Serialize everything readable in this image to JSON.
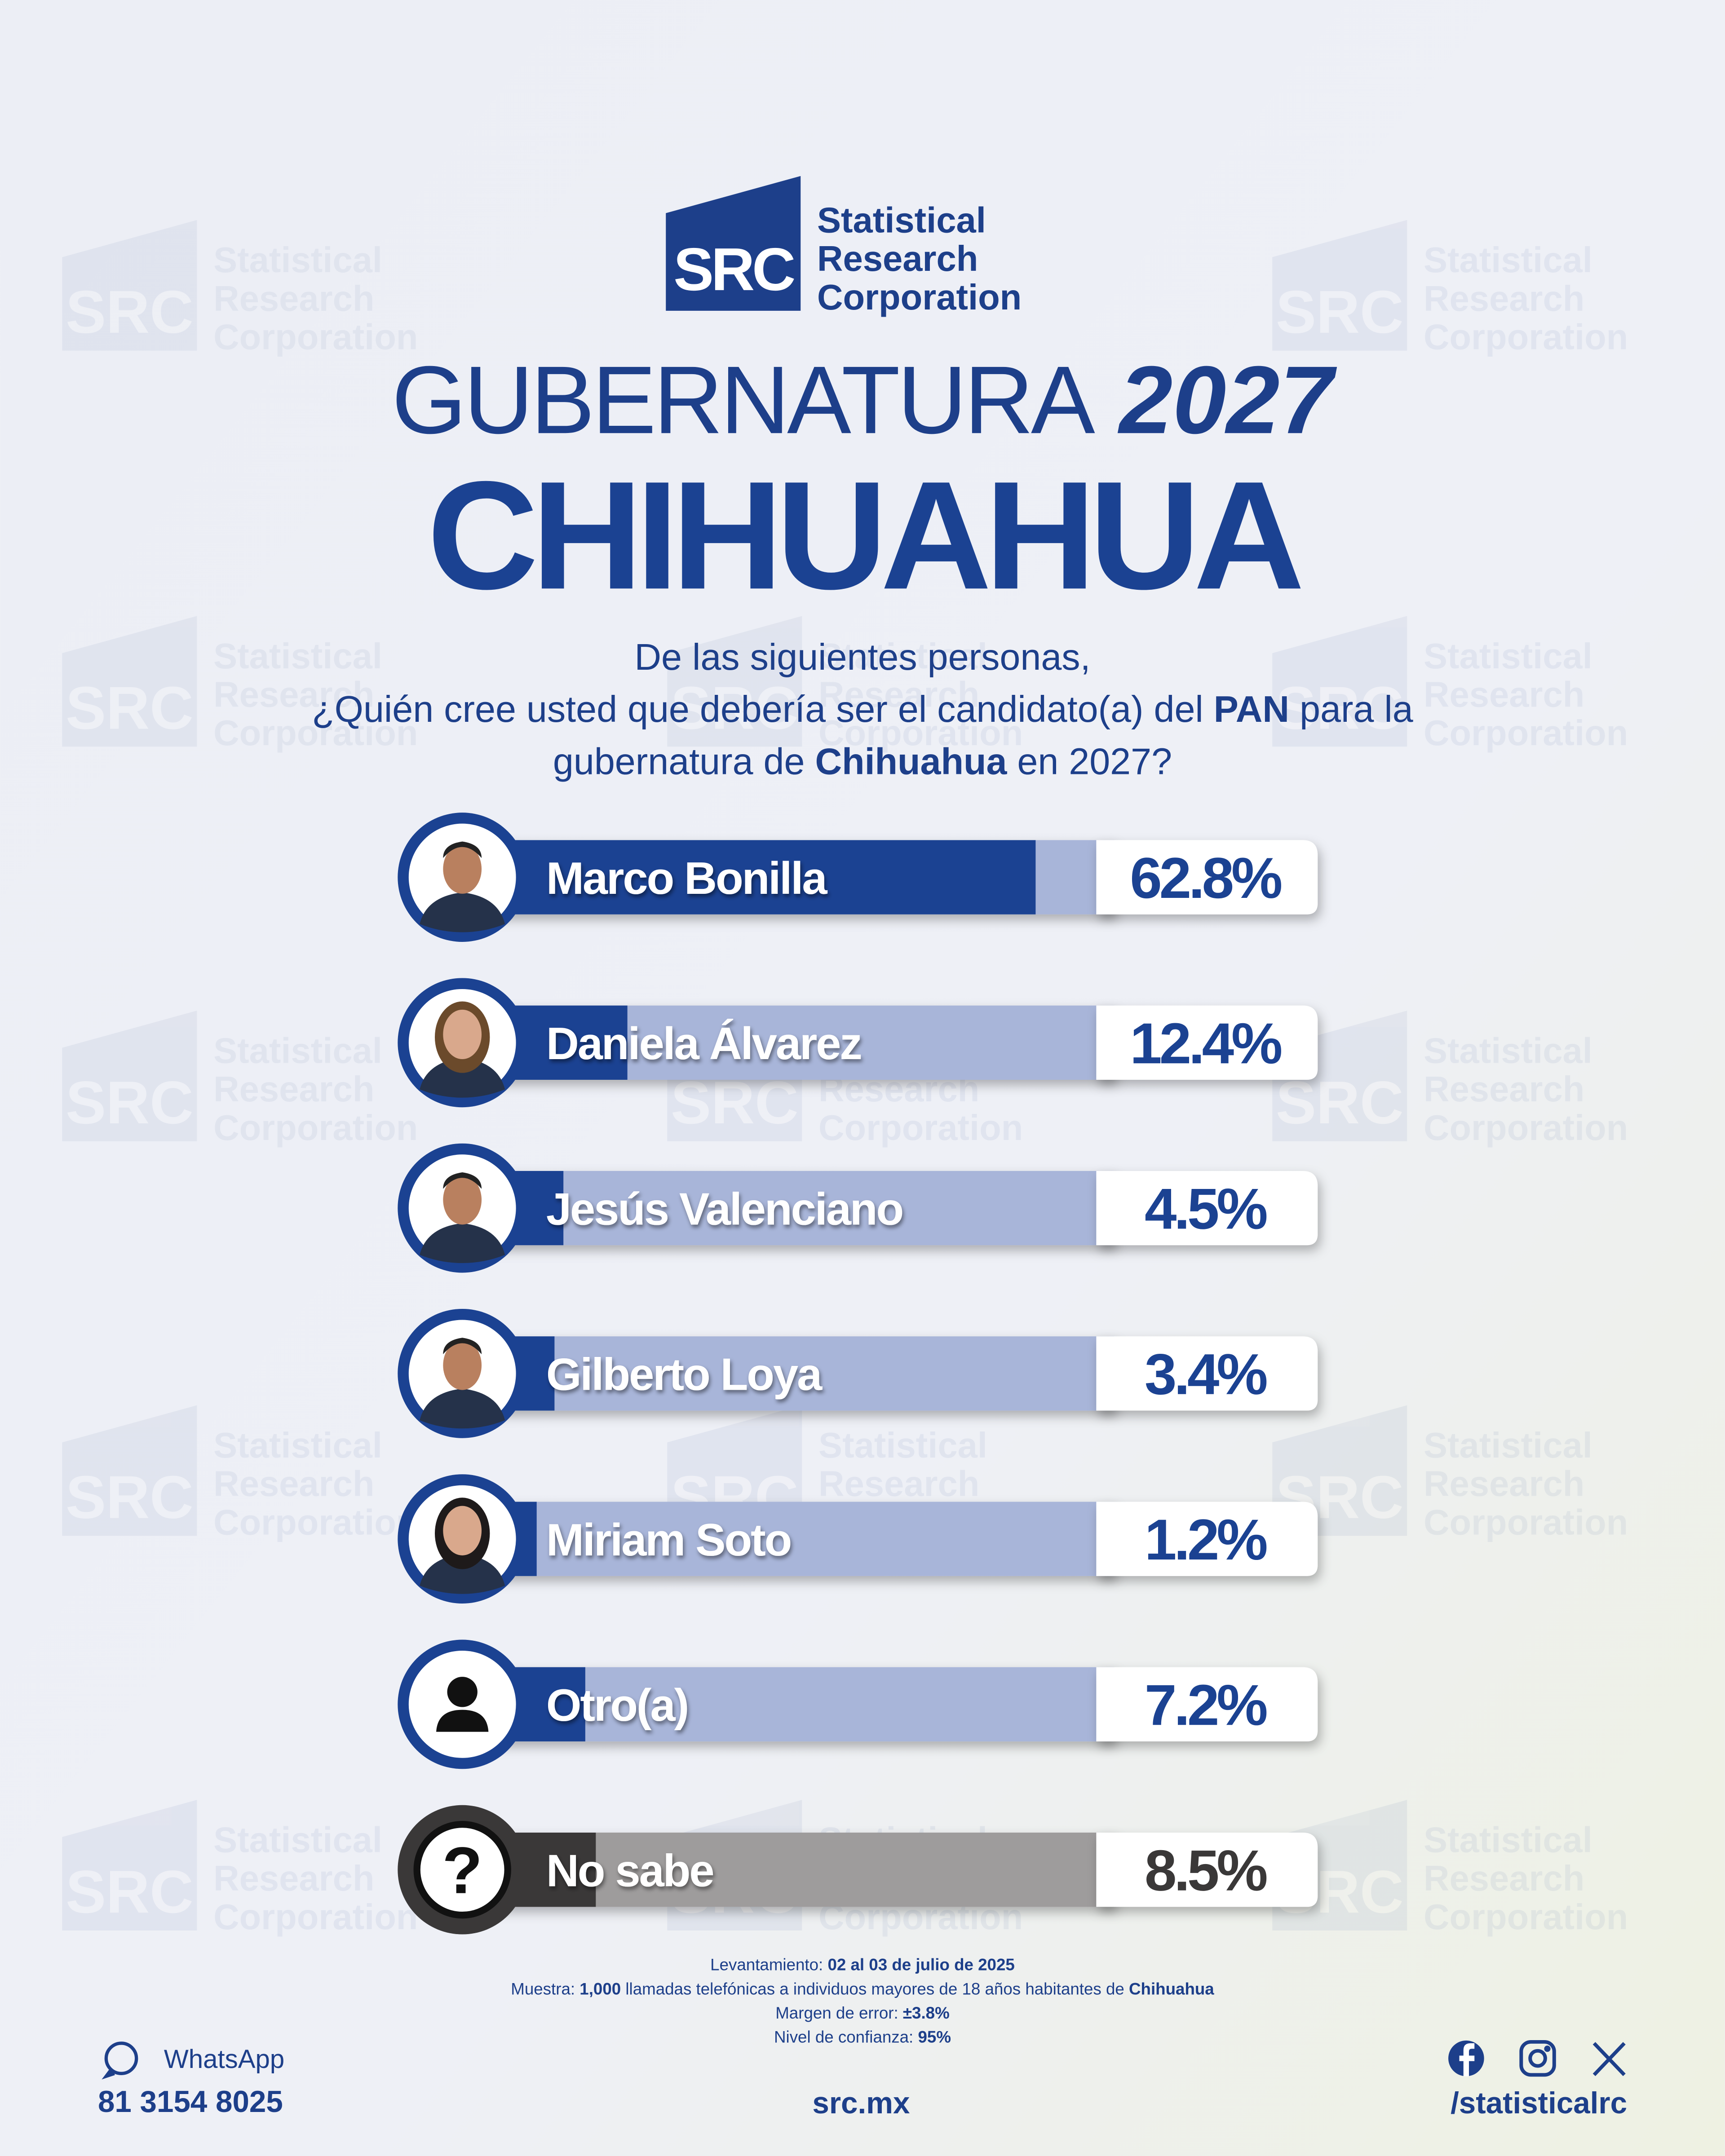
{
  "header": {
    "logo_mark": "SRC",
    "logo_lines": [
      "Statistical",
      "Research",
      "Corporation"
    ],
    "title_word": "GUBERNATURA",
    "title_year": "2027",
    "subtitle": "CHIHUAHUA"
  },
  "chart_data": {
    "type": "bar",
    "orientation": "horizontal",
    "question": [
      [
        "De las siguientes personas,"
      ],
      [
        "¿Quién cree usted que debería ser el candidato(a) del ",
        "PAN",
        " para la"
      ],
      [
        "gubernatura de ",
        "Chihuahua",
        " en 2027?"
      ]
    ],
    "categories": [
      "Marco Bonilla",
      "Daniela Álvarez",
      "Jesús Valenciano",
      "Gilberto Loya",
      "Miriam Soto",
      "Otro(a)",
      "No sabe"
    ],
    "values": [
      62.8,
      12.4,
      4.5,
      3.4,
      1.2,
      7.2,
      8.5
    ],
    "value_labels": [
      "62.8%",
      "12.4%",
      "4.5%",
      "3.4%",
      "1.2%",
      "7.2%",
      "8.5%"
    ],
    "colors": [
      "#1b4292",
      "#1b4292",
      "#1b4292",
      "#1b4292",
      "#1b4292",
      "#1b4292",
      "#3a3838"
    ],
    "track_colors": [
      "#a8b5d9",
      "#a8b5d9",
      "#a8b5d9",
      "#a8b5d9",
      "#a8b5d9",
      "#a8b5d9",
      "#9e9c9c"
    ],
    "xlim": [
      0,
      100
    ]
  },
  "footer": {
    "notes": [
      [
        "Levantamiento: ",
        "02 al 03 de julio de 2025"
      ],
      [
        "Muestra: ",
        "1,000",
        " llamadas telefónicas a individuos mayores de 18 años habitantes de ",
        "Chihuahua"
      ],
      [
        "Margen de error: ",
        "±3.8%"
      ],
      [
        "Nivel de confianza: ",
        "95%"
      ]
    ],
    "whatsapp_label": "WhatsApp",
    "phone": "81 3154 8025",
    "website": "src.mx",
    "social_handle": "/statisticalrc"
  }
}
